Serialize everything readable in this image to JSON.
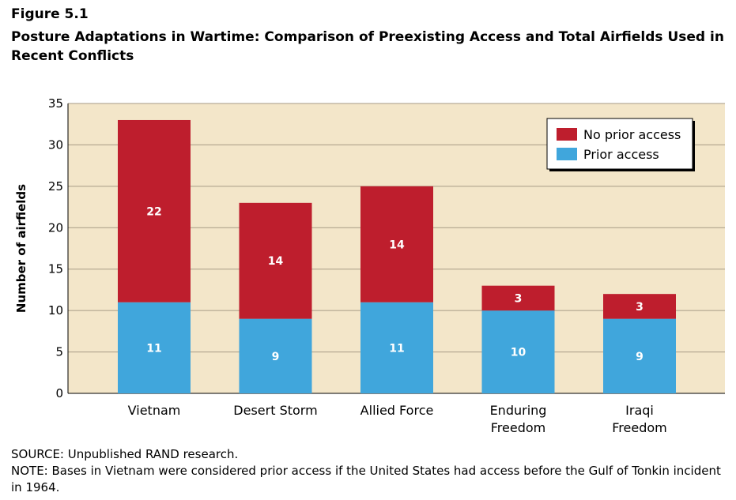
{
  "figure": {
    "label": "Figure 5.1",
    "title": "Posture Adaptations in Wartime: Comparison of Preexisting Access and Total Airfields Used in Recent Conflicts"
  },
  "notes": {
    "source": "SOURCE: Unpublished RAND research.",
    "note": "NOTE: Bases in Vietnam were considered prior access if the United States had access before the Gulf of Tonkin incident in 1964."
  },
  "colors": {
    "plot_background": "#f3e6c9",
    "gridline": "#a79b86",
    "no_prior_access": "#be1e2d",
    "prior_access": "#40a6dc"
  },
  "chart_data": {
    "type": "bar",
    "stacked": true,
    "title": "",
    "xlabel": "",
    "ylabel": "Number of airfields",
    "ylim": [
      0,
      35
    ],
    "yticks": [
      0,
      5,
      10,
      15,
      20,
      25,
      30,
      35
    ],
    "grid": true,
    "legend_position": "top-right",
    "categories": [
      [
        "Vietnam"
      ],
      [
        "Desert Storm"
      ],
      [
        "Allied Force"
      ],
      [
        "Enduring",
        "Freedom"
      ],
      [
        "Iraqi",
        "Freedom"
      ]
    ],
    "series": [
      {
        "name": "Prior access",
        "color_key": "prior_access",
        "values": [
          11,
          9,
          11,
          10,
          9
        ]
      },
      {
        "name": "No prior access",
        "color_key": "no_prior_access",
        "values": [
          22,
          14,
          14,
          3,
          3
        ]
      }
    ],
    "legend": [
      "No prior access",
      "Prior access"
    ]
  }
}
